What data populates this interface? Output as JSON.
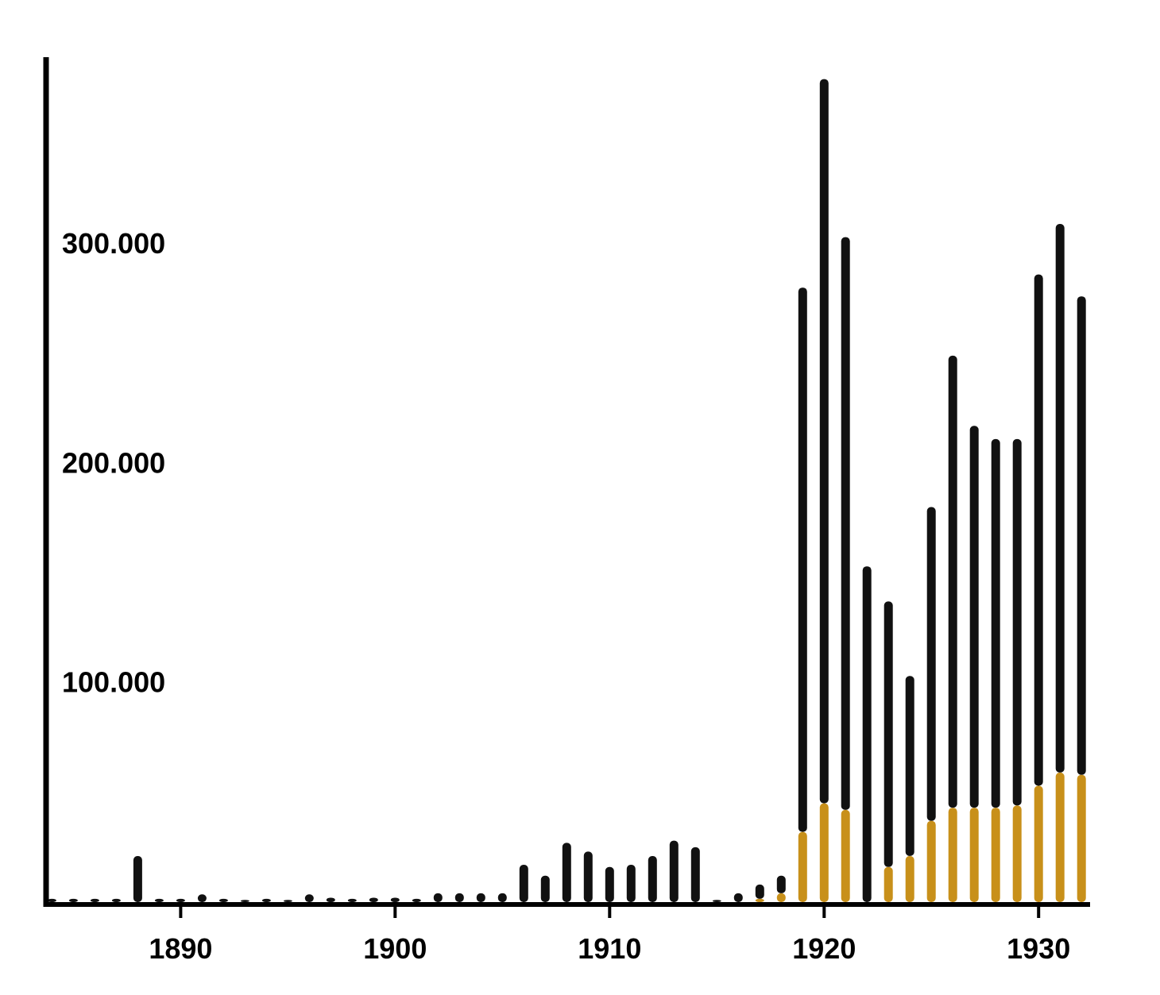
{
  "chart_data": {
    "type": "bar",
    "title": "",
    "xlabel": "",
    "ylabel": "",
    "ylim": [
      0,
      385000
    ],
    "xlim": [
      1883.8,
      1932.4
    ],
    "grid": false,
    "legend": "none",
    "y_ticks": [
      {
        "value": 100000,
        "label": "100.000"
      },
      {
        "value": 200000,
        "label": "200.000"
      },
      {
        "value": 300000,
        "label": "300.000"
      }
    ],
    "x_ticks": [
      {
        "value": 1890,
        "label": "1890"
      },
      {
        "value": 1900,
        "label": "1900"
      },
      {
        "value": 1910,
        "label": "1910"
      },
      {
        "value": 1920,
        "label": "1920"
      },
      {
        "value": 1930,
        "label": "1930"
      }
    ],
    "categories": [
      1884,
      1885,
      1886,
      1887,
      1888,
      1889,
      1890,
      1891,
      1892,
      1893,
      1894,
      1895,
      1896,
      1897,
      1898,
      1899,
      1900,
      1901,
      1902,
      1903,
      1904,
      1905,
      1906,
      1907,
      1908,
      1909,
      1910,
      1911,
      1912,
      1913,
      1914,
      1915,
      1916,
      1917,
      1918,
      1919,
      1920,
      1921,
      1922,
      1923,
      1924,
      1925,
      1926,
      1927,
      1928,
      1929,
      1930,
      1931,
      1932
    ],
    "series": [
      {
        "color": "#111111",
        "values": [
          1500,
          1500,
          1500,
          1500,
          21000,
          1500,
          1500,
          3500,
          1500,
          1000,
          1500,
          1000,
          3500,
          2000,
          1500,
          2000,
          2000,
          1500,
          4000,
          4000,
          4000,
          4000,
          17000,
          12000,
          27000,
          23000,
          16000,
          17000,
          21000,
          28000,
          25000,
          1000,
          4000,
          8000,
          12000,
          280000,
          375000,
          303000,
          153000,
          137000,
          103000,
          180000,
          249000,
          217000,
          211000,
          211000,
          286000,
          309000,
          276000
        ]
      },
      {
        "color": "#c8901a",
        "values": [
          0,
          0,
          0,
          0,
          0,
          0,
          0,
          0,
          0,
          0,
          0,
          0,
          0,
          0,
          0,
          0,
          0,
          0,
          0,
          0,
          0,
          0,
          0,
          0,
          0,
          0,
          0,
          0,
          0,
          0,
          0,
          0,
          0,
          1500,
          4000,
          32000,
          45000,
          42000,
          0,
          16000,
          21000,
          37000,
          43000,
          43000,
          43000,
          44000,
          53000,
          59000,
          58000
        ]
      }
    ]
  }
}
